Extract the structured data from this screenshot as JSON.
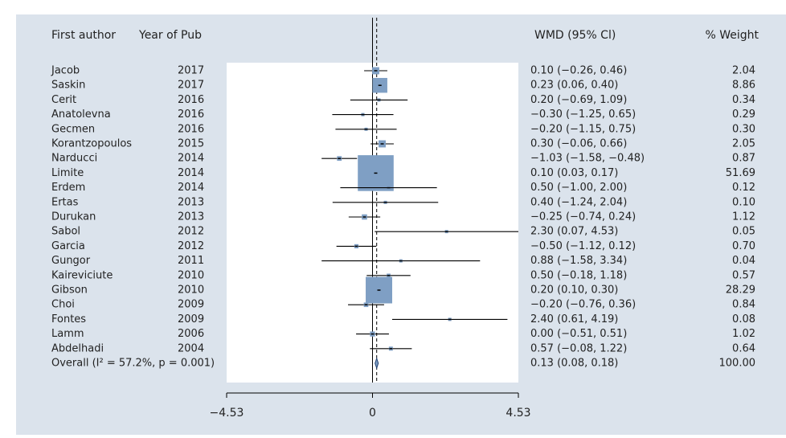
{
  "chart_data": {
    "type": "forest",
    "headers": [
      "First author",
      "Year of Pub",
      "WMD (95% Cl)",
      "% Weight"
    ],
    "categories": [
      "Jacob",
      "Saskin",
      "Cerit",
      "Anatolevna",
      "Gecmen",
      "Korantzopoulos",
      "Narducci",
      "Limite",
      "Erdem",
      "Ertas",
      "Durukan",
      "Sabol",
      "Garcia",
      "Gungor",
      "Kaireviciute",
      "Gibson",
      "Choi",
      "Fontes",
      "Lamm",
      "Abdelhadi"
    ],
    "years": [
      2017,
      2017,
      2016,
      2016,
      2016,
      2015,
      2014,
      2014,
      2014,
      2013,
      2013,
      2012,
      2012,
      2011,
      2010,
      2010,
      2009,
      2009,
      2006,
      2004
    ],
    "values": [
      0.1,
      0.23,
      0.2,
      -0.3,
      -0.2,
      0.3,
      -1.03,
      0.1,
      0.5,
      0.4,
      -0.25,
      2.3,
      -0.5,
      0.88,
      0.5,
      0.2,
      -0.2,
      2.4,
      0.0,
      0.57
    ],
    "lower": [
      -0.26,
      0.06,
      -0.69,
      -1.25,
      -1.15,
      -0.06,
      -1.58,
      0.03,
      -1.0,
      -1.24,
      -0.74,
      0.07,
      -1.12,
      -1.58,
      -0.18,
      0.1,
      -0.76,
      0.61,
      -0.51,
      -0.08
    ],
    "upper": [
      0.46,
      0.4,
      1.09,
      0.65,
      0.75,
      0.66,
      -0.48,
      0.17,
      2.0,
      2.04,
      0.24,
      4.53,
      0.12,
      3.34,
      1.18,
      0.3,
      0.36,
      4.19,
      0.51,
      1.22
    ],
    "value_labels": [
      "0.10 (−0.26, 0.46)",
      "0.23 (0.06, 0.40)",
      "0.20 (−0.69, 1.09)",
      "−0.30 (−1.25, 0.65)",
      "−0.20 (−1.15, 0.75)",
      "0.30 (−0.06, 0.66)",
      "−1.03 (−1.58, −0.48)",
      "0.10 (0.03, 0.17)",
      "0.50 (−1.00, 2.00)",
      "0.40 (−1.24, 2.04)",
      "−0.25 (−0.74, 0.24)",
      "2.30 (0.07, 4.53)",
      "−0.50 (−1.12, 0.12)",
      "0.88 (−1.58, 3.34)",
      "0.50 (−0.18, 1.18)",
      "0.20 (0.10, 0.30)",
      "−0.20 (−0.76, 0.36)",
      "2.40 (0.61, 4.19)",
      "0.00 (−0.51, 0.51)",
      "0.57 (−0.08, 1.22)"
    ],
    "weights": [
      2.04,
      8.86,
      0.34,
      0.29,
      0.3,
      2.05,
      0.87,
      51.69,
      0.12,
      0.1,
      1.12,
      0.05,
      0.7,
      0.04,
      0.57,
      28.29,
      0.84,
      0.08,
      1.02,
      0.64
    ],
    "weight_labels": [
      "2.04",
      "8.86",
      "0.34",
      "0.29",
      "0.30",
      "2.05",
      "0.87",
      "51.69",
      "0.12",
      "0.10",
      "1.12",
      "0.05",
      "0.70",
      "0.04",
      "0.57",
      "28.29",
      "0.84",
      "0.08",
      "1.02",
      "0.64"
    ],
    "overall": {
      "label": "Overall (I² = 57.2%, p = 0.001)",
      "value": 0.13,
      "lower": 0.08,
      "upper": 0.18,
      "value_label": "0.13 (0.08, 0.18)",
      "weight": 100,
      "weight_label": "100.00"
    },
    "color": "#7f9fc4",
    "xlim": [
      -4.53,
      4.53
    ],
    "xticks": [
      {
        "value": -4.53,
        "label": "−4.53"
      },
      0,
      4.53
    ]
  }
}
